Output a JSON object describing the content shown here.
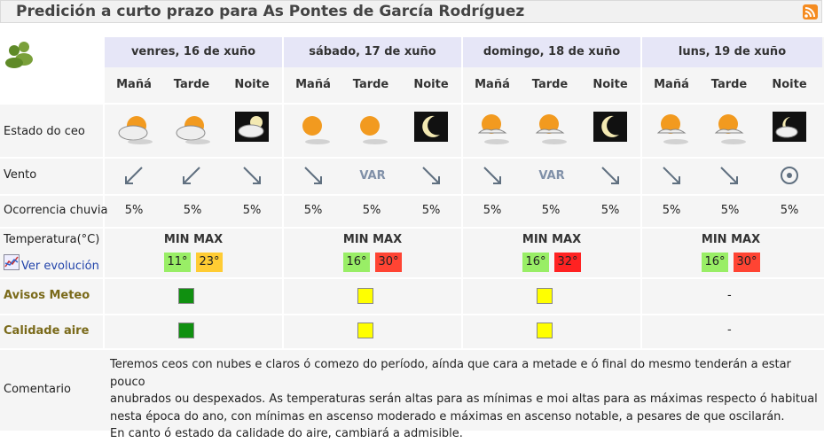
{
  "header": {
    "title": "Predición a curto prazo para As Pontes de García Rodríguez",
    "rss_icon": "rss-icon"
  },
  "days": [
    {
      "date": "venres, 16 de xuño",
      "periods": [
        "Mañá",
        "Tarde",
        "Noite"
      ],
      "sky": [
        "cloudy-sun-icon",
        "cloudy-sun-icon",
        "cloudy-moon-icon"
      ],
      "wind": [
        "sw",
        "sw",
        "nw"
      ],
      "rain": [
        "5%",
        "5%",
        "5%"
      ],
      "min": "11°",
      "max": "23°",
      "warning": "green",
      "air": "green"
    },
    {
      "date": "sábado, 17 de xuño",
      "periods": [
        "Mañá",
        "Tarde",
        "Noite"
      ],
      "sky": [
        "sun-icon",
        "sun-icon",
        "moon-icon"
      ],
      "wind": [
        "nw",
        "VAR",
        "nw"
      ],
      "rain": [
        "5%",
        "5%",
        "5%"
      ],
      "min": "16°",
      "max": "30°",
      "warning": "yellow",
      "air": "yellow"
    },
    {
      "date": "domingo, 18 de xuño",
      "periods": [
        "Mañá",
        "Tarde",
        "Noite"
      ],
      "sky": [
        "partly-cloudy-sun-icon",
        "partly-cloudy-sun-icon",
        "moon-icon"
      ],
      "wind": [
        "nw",
        "VAR",
        "nw"
      ],
      "rain": [
        "5%",
        "5%",
        "5%"
      ],
      "min": "16°",
      "max": "32°",
      "warning": "yellow",
      "air": "yellow"
    },
    {
      "date": "luns, 19 de xuño",
      "periods": [
        "Mañá",
        "Tarde",
        "Noite"
      ],
      "sky": [
        "partly-cloudy-sun-icon",
        "partly-cloudy-sun-icon",
        "cloudy-moon-icon"
      ],
      "wind": [
        "nw",
        "nw",
        "calm"
      ],
      "rain": [
        "5%",
        "5%",
        "5%"
      ],
      "min": "16°",
      "max": "30°",
      "warning": "-",
      "air": "-"
    }
  ],
  "labels": {
    "sky": "Estado do ceo",
    "wind": "Vento",
    "rain": "Ocorrencia chuvia",
    "temp": "Temperatura(°C)",
    "evolution": "Ver evolución",
    "minmax": "MIN MAX",
    "warnings": "Avisos Meteo",
    "air": "Calidade aire",
    "comment": "Comentario"
  },
  "var_label": "VAR",
  "dash": "-",
  "comment_lines": [
    "Teremos ceos con nubes e claros ó comezo do período, aínda que cara a metade e ó final do mesmo tenderán a estar pouco",
    "anubrados ou despexados. As temperaturas serán altas para as mínimas e moi altas para as máximas respecto ó habitual",
    "nesta época do ano, con mínimas en ascenso moderado e máximas en ascenso notable, a pesares de que oscilarán.",
    "En canto ó estado da calidade do aire, cambiará a admisible."
  ],
  "colors": {
    "min": "#99ee66",
    "max_warm": "#ffcc33",
    "max_hot": "#ff4433",
    "warning_green": "#109010",
    "warning_yellow": "#ffff00"
  }
}
